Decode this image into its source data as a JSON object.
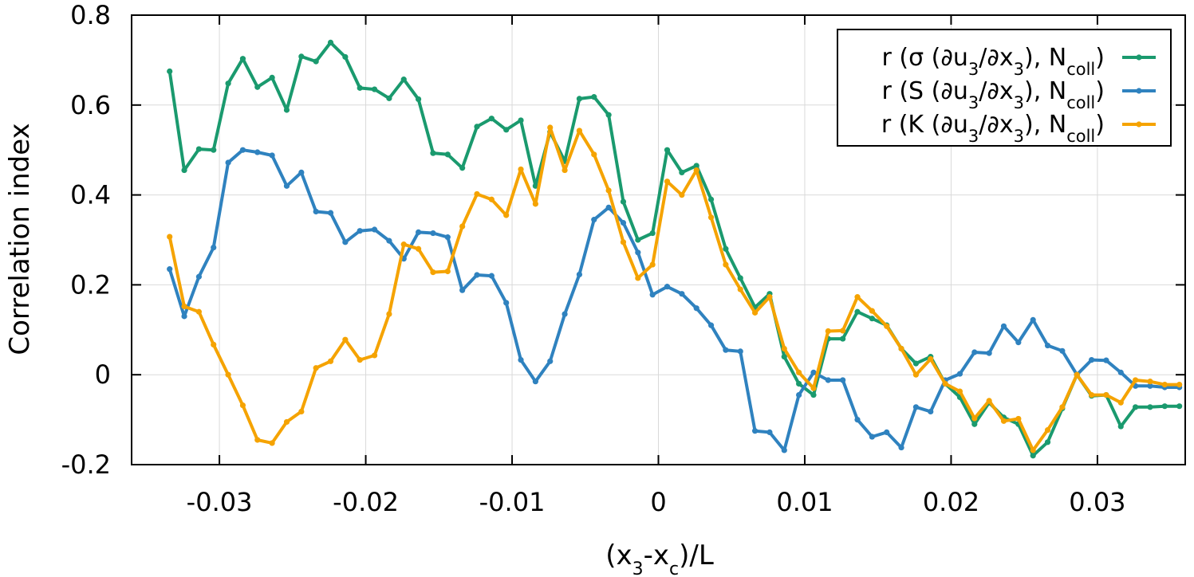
{
  "chart_data": {
    "type": "line",
    "xlabel": "(x3-xc)/L",
    "ylabel": "Correlation index",
    "xlim": [
      -0.036,
      0.036
    ],
    "ylim": [
      -0.2,
      0.8
    ],
    "xticks": [
      -0.03,
      -0.02,
      -0.01,
      0,
      0.01,
      0.02,
      0.03
    ],
    "xtick_labels": [
      "-0.03",
      "-0.02",
      "-0.01",
      "0",
      "0.01",
      "0.02",
      "0.03"
    ],
    "yticks": [
      -0.2,
      0,
      0.2,
      0.4,
      0.6,
      0.8
    ],
    "ytick_labels": [
      "-0.2",
      "0",
      "0.2",
      "0.4",
      "0.6",
      "0.8"
    ],
    "grid": true,
    "legend_position": "top-right",
    "x": [
      -0.0334,
      -0.0324,
      -0.0314,
      -0.0304,
      -0.0294,
      -0.0284,
      -0.0274,
      -0.0264,
      -0.0254,
      -0.0244,
      -0.0234,
      -0.0224,
      -0.0214,
      -0.0204,
      -0.0194,
      -0.0184,
      -0.0174,
      -0.0164,
      -0.0154,
      -0.0144,
      -0.0134,
      -0.0124,
      -0.0114,
      -0.0104,
      -0.0094,
      -0.0084,
      -0.0074,
      -0.0064,
      -0.0054,
      -0.0044,
      -0.0034,
      -0.0024,
      -0.0014,
      -0.0004,
      0.0006,
      0.0016,
      0.0026,
      0.0036,
      0.0046,
      0.0056,
      0.0066,
      0.0076,
      0.0086,
      0.0096,
      0.0106,
      0.0116,
      0.0126,
      0.0136,
      0.0146,
      0.0156,
      0.0166,
      0.0176,
      0.0186,
      0.0196,
      0.0206,
      0.0216,
      0.0226,
      0.0236,
      0.0246,
      0.0256,
      0.0266,
      0.0276,
      0.0286,
      0.0296,
      0.0306,
      0.0316,
      0.0326,
      0.0336,
      0.0346,
      0.0356
    ],
    "series": [
      {
        "name": "r (σ (∂u3/∂x3), Ncoll)",
        "color": "#1a9a6e",
        "values": [
          0.675,
          0.455,
          0.502,
          0.5,
          0.648,
          0.703,
          0.64,
          0.661,
          0.589,
          0.708,
          0.697,
          0.739,
          0.707,
          0.638,
          0.635,
          0.615,
          0.657,
          0.613,
          0.493,
          0.49,
          0.46,
          0.552,
          0.57,
          0.545,
          0.566,
          0.42,
          0.54,
          0.475,
          0.614,
          0.618,
          0.578,
          0.385,
          0.3,
          0.315,
          0.5,
          0.45,
          0.465,
          0.39,
          0.28,
          0.215,
          0.15,
          0.18,
          0.04,
          -0.02,
          -0.045,
          0.08,
          0.08,
          0.14,
          0.125,
          0.11,
          0.058,
          0.025,
          0.04,
          -0.02,
          -0.05,
          -0.11,
          -0.062,
          -0.095,
          -0.11,
          -0.18,
          -0.15,
          -0.075,
          0.0,
          -0.047,
          -0.045,
          -0.115,
          -0.072,
          -0.072,
          -0.07,
          -0.07
        ]
      },
      {
        "name": "r (S (∂u3/∂x3), Ncoll)",
        "color": "#2f82bf",
        "values": [
          0.235,
          0.13,
          0.218,
          0.283,
          0.472,
          0.5,
          0.495,
          0.488,
          0.42,
          0.45,
          0.363,
          0.36,
          0.295,
          0.32,
          0.323,
          0.298,
          0.258,
          0.317,
          0.315,
          0.306,
          0.188,
          0.222,
          0.22,
          0.16,
          0.033,
          -0.015,
          0.03,
          0.135,
          0.223,
          0.345,
          0.372,
          0.338,
          0.272,
          0.178,
          0.196,
          0.18,
          0.148,
          0.11,
          0.055,
          0.052,
          -0.125,
          -0.128,
          -0.168,
          -0.045,
          0.005,
          -0.012,
          -0.012,
          -0.1,
          -0.138,
          -0.128,
          -0.162,
          -0.072,
          -0.082,
          -0.012,
          0.002,
          0.05,
          0.048,
          0.108,
          0.072,
          0.122,
          0.065,
          0.053,
          0.0,
          0.033,
          0.032,
          0.005,
          -0.025,
          -0.025,
          -0.028,
          -0.028
        ]
      },
      {
        "name": "r (K (∂u3/∂x3), Ncoll)",
        "color": "#f5a300",
        "values": [
          0.307,
          0.152,
          0.14,
          0.067,
          0.0,
          -0.068,
          -0.145,
          -0.152,
          -0.105,
          -0.082,
          0.015,
          0.03,
          0.078,
          0.033,
          0.043,
          0.135,
          0.29,
          0.28,
          0.228,
          0.23,
          0.33,
          0.402,
          0.39,
          0.355,
          0.457,
          0.38,
          0.55,
          0.455,
          0.543,
          0.49,
          0.41,
          0.295,
          0.215,
          0.245,
          0.43,
          0.4,
          0.455,
          0.35,
          0.245,
          0.19,
          0.138,
          0.173,
          0.058,
          0.005,
          -0.03,
          0.097,
          0.098,
          0.173,
          0.142,
          0.108,
          0.058,
          0.0,
          0.035,
          -0.02,
          -0.037,
          -0.097,
          -0.058,
          -0.103,
          -0.098,
          -0.168,
          -0.123,
          -0.072,
          0.0,
          -0.045,
          -0.045,
          -0.062,
          -0.012,
          -0.015,
          -0.022,
          -0.022
        ]
      }
    ]
  }
}
